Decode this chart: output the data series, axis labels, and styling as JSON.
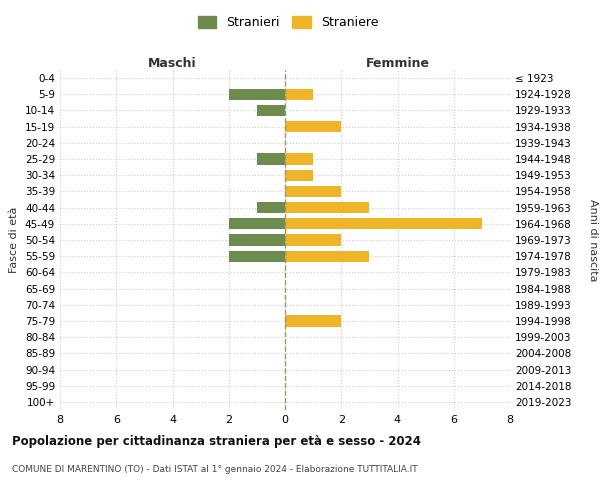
{
  "age_groups": [
    "0-4",
    "5-9",
    "10-14",
    "15-19",
    "20-24",
    "25-29",
    "30-34",
    "35-39",
    "40-44",
    "45-49",
    "50-54",
    "55-59",
    "60-64",
    "65-69",
    "70-74",
    "75-79",
    "80-84",
    "85-89",
    "90-94",
    "95-99",
    "100+"
  ],
  "birth_years": [
    "2019-2023",
    "2014-2018",
    "2009-2013",
    "2004-2008",
    "1999-2003",
    "1994-1998",
    "1989-1993",
    "1984-1988",
    "1979-1983",
    "1974-1978",
    "1969-1973",
    "1964-1968",
    "1959-1963",
    "1954-1958",
    "1949-1953",
    "1944-1948",
    "1939-1943",
    "1934-1938",
    "1929-1933",
    "1924-1928",
    "≤ 1923"
  ],
  "maschi": [
    0,
    2,
    1,
    0,
    0,
    1,
    0,
    0,
    1,
    2,
    2,
    2,
    0,
    0,
    0,
    0,
    0,
    0,
    0,
    0,
    0
  ],
  "femmine": [
    0,
    1,
    0,
    2,
    0,
    1,
    1,
    2,
    3,
    7,
    2,
    3,
    0,
    0,
    0,
    2,
    0,
    0,
    0,
    0,
    0
  ],
  "maschi_color": "#6d8b4e",
  "femmine_color": "#f0b429",
  "title": "Popolazione per cittadinanza straniera per età e sesso - 2024",
  "subtitle": "COMUNE DI MARENTINO (TO) - Dati ISTAT al 1° gennaio 2024 - Elaborazione TUTTITALIA.IT",
  "maschi_label": "Stranieri",
  "femmine_label": "Straniere",
  "xlabel_left": "Maschi",
  "xlabel_right": "Femmine",
  "ylabel_left": "Fasce di età",
  "ylabel_right": "Anni di nascita",
  "xlim": 8,
  "background_color": "#ffffff",
  "grid_color": "#cccccc"
}
